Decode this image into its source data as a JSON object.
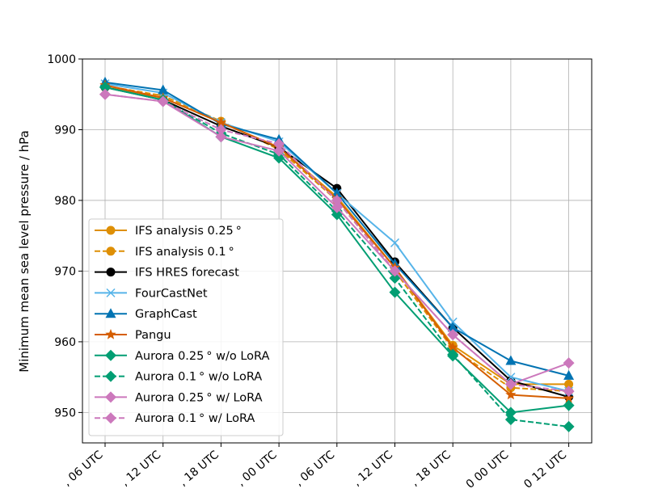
{
  "chart_data": {
    "type": "line",
    "title": "",
    "xlabel": "",
    "ylabel": "Minimum mean sea level pressure / hPa",
    "categories": [
      "... 06 UTC",
      "... 12 UTC",
      "... 18 UTC",
      "... 00 UTC",
      "... 06 UTC",
      "... 12 UTC",
      "... 18 UTC",
      "... 00 UTC",
      "... 12 UTC"
    ],
    "tick_labels_visible": [
      ", 06 UTC",
      ", 12 UTC",
      ", 18 UTC",
      ", 00 UTC",
      ", 06 UTC",
      ", 12 UTC",
      ", 18 UTC",
      "0 00 UTC",
      "0 12 UTC"
    ],
    "ylim": [
      945.7,
      1000
    ],
    "yticks": [
      950,
      960,
      970,
      980,
      990,
      1000
    ],
    "grid": true,
    "legend_position": "center-left",
    "series": [
      {
        "name": "IFS analysis 0.25 °",
        "color": "#de8f05",
        "dash": "solid",
        "marker": "circle",
        "values": [
          996.0,
          994.5,
          991.0,
          987.5,
          980.5,
          970.5,
          959.5,
          954.0,
          954.0
        ]
      },
      {
        "name": "IFS analysis 0.1 °",
        "color": "#de8f05",
        "dash": "dashed",
        "marker": "circle",
        "values": [
          996.2,
          994.8,
          991.2,
          987.2,
          980.0,
          970.0,
          959.0,
          953.5,
          953.0
        ]
      },
      {
        "name": "IFS HRES forecast",
        "color": "#000000",
        "dash": "solid",
        "marker": "circle",
        "values": [
          996.0,
          994.2,
          990.5,
          987.5,
          981.7,
          971.3,
          962.0,
          954.5,
          952.2
        ]
      },
      {
        "name": "FourCastNet",
        "color": "#56b4e9",
        "dash": "solid",
        "marker": "x",
        "values": [
          996.5,
          995.2,
          991.0,
          988.3,
          981.0,
          974.0,
          962.8,
          955.0,
          953.0
        ]
      },
      {
        "name": "GraphCast",
        "color": "#0173b2",
        "dash": "solid",
        "marker": "triangle",
        "values": [
          996.7,
          995.6,
          990.8,
          988.6,
          981.0,
          971.0,
          962.0,
          957.3,
          955.2
        ]
      },
      {
        "name": "Pangu",
        "color": "#d55e00",
        "dash": "solid",
        "marker": "star",
        "values": [
          996.3,
          994.5,
          991.0,
          987.5,
          980.2,
          970.5,
          959.2,
          952.5,
          952.0
        ]
      },
      {
        "name": "Aurora 0.25 °  w/o LoRA",
        "color": "#029e73",
        "dash": "solid",
        "marker": "diamond",
        "values": [
          996.0,
          994.2,
          989.0,
          986.0,
          978.0,
          967.0,
          958.0,
          950.0,
          951.0
        ]
      },
      {
        "name": "Aurora 0.1 °  w/o LoRA",
        "color": "#029e73",
        "dash": "dashed",
        "marker": "diamond",
        "values": [
          996.0,
          994.2,
          989.5,
          986.5,
          978.5,
          969.0,
          958.2,
          949.0,
          948.0
        ]
      },
      {
        "name": "Aurora 0.25 °  w/ LoRA",
        "color": "#cc78bc",
        "dash": "solid",
        "marker": "diamond",
        "values": [
          995.0,
          994.0,
          989.0,
          987.0,
          979.0,
          970.0,
          961.0,
          954.0,
          957.0
        ]
      },
      {
        "name": "Aurora 0.1 °  w/ LoRA",
        "color": "#cc78bc",
        "dash": "dashed",
        "marker": "diamond",
        "values": [
          995.0,
          994.0,
          990.0,
          988.0,
          980.0,
          970.0,
          961.0,
          954.0,
          953.0
        ]
      }
    ]
  }
}
